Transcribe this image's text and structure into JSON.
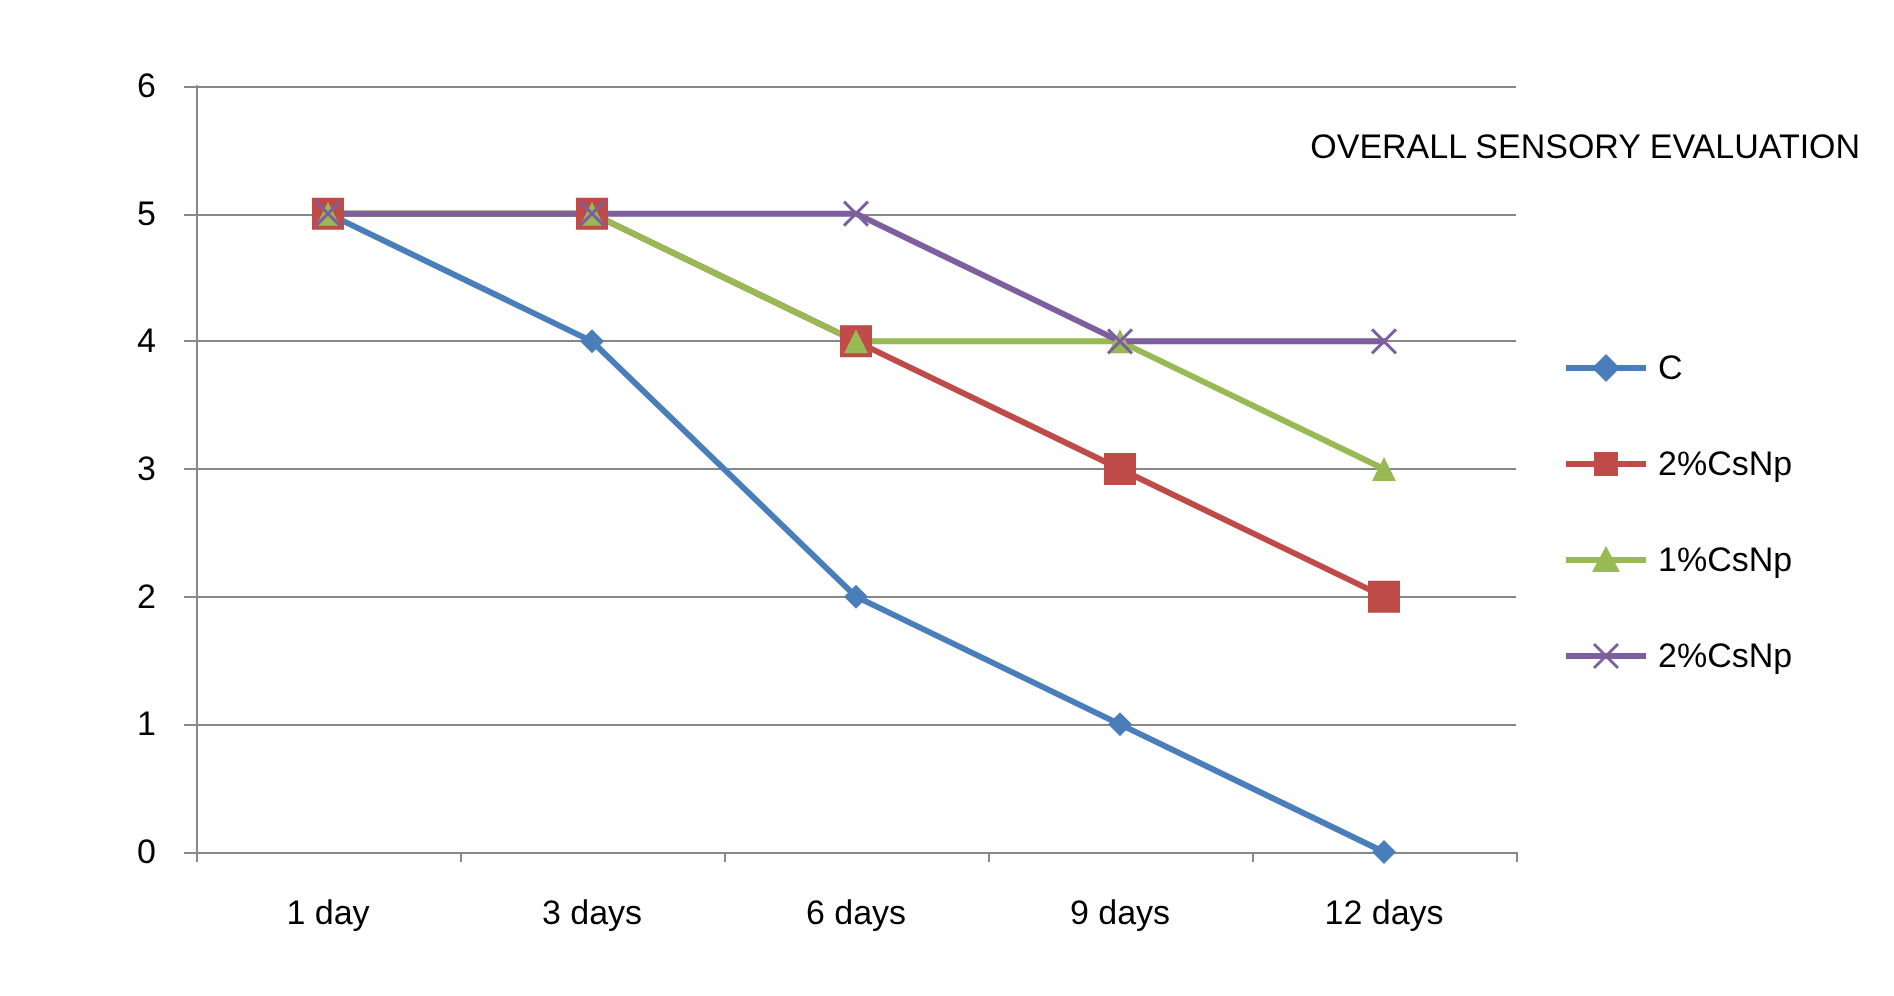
{
  "chart_data": {
    "type": "line",
    "title": "OVERALL SENSORY EVALUATION",
    "categories": [
      "1 day",
      "3 days",
      "6 days",
      "9 days",
      "12 days"
    ],
    "series": [
      {
        "name": "C",
        "color": "#4a7ebb",
        "marker": "diamond",
        "values": [
          5,
          4,
          2,
          1,
          0
        ]
      },
      {
        "name": "2%CsNp",
        "color": "#be4b48",
        "marker": "square",
        "values": [
          5,
          5,
          4,
          3,
          2
        ]
      },
      {
        "name": "1%CsNp",
        "color": "#98b954",
        "marker": "triangle",
        "values": [
          5,
          5,
          4,
          4,
          3
        ]
      },
      {
        "name": "2%CsNp",
        "color": "#7d5fa0",
        "marker": "cross",
        "values": [
          5,
          5,
          5,
          4,
          4
        ]
      }
    ],
    "ylim": [
      0,
      6
    ],
    "yticks": [
      0,
      1,
      2,
      3,
      4,
      5,
      6
    ],
    "grid": "y",
    "legend": "right",
    "line_style": "solid"
  }
}
